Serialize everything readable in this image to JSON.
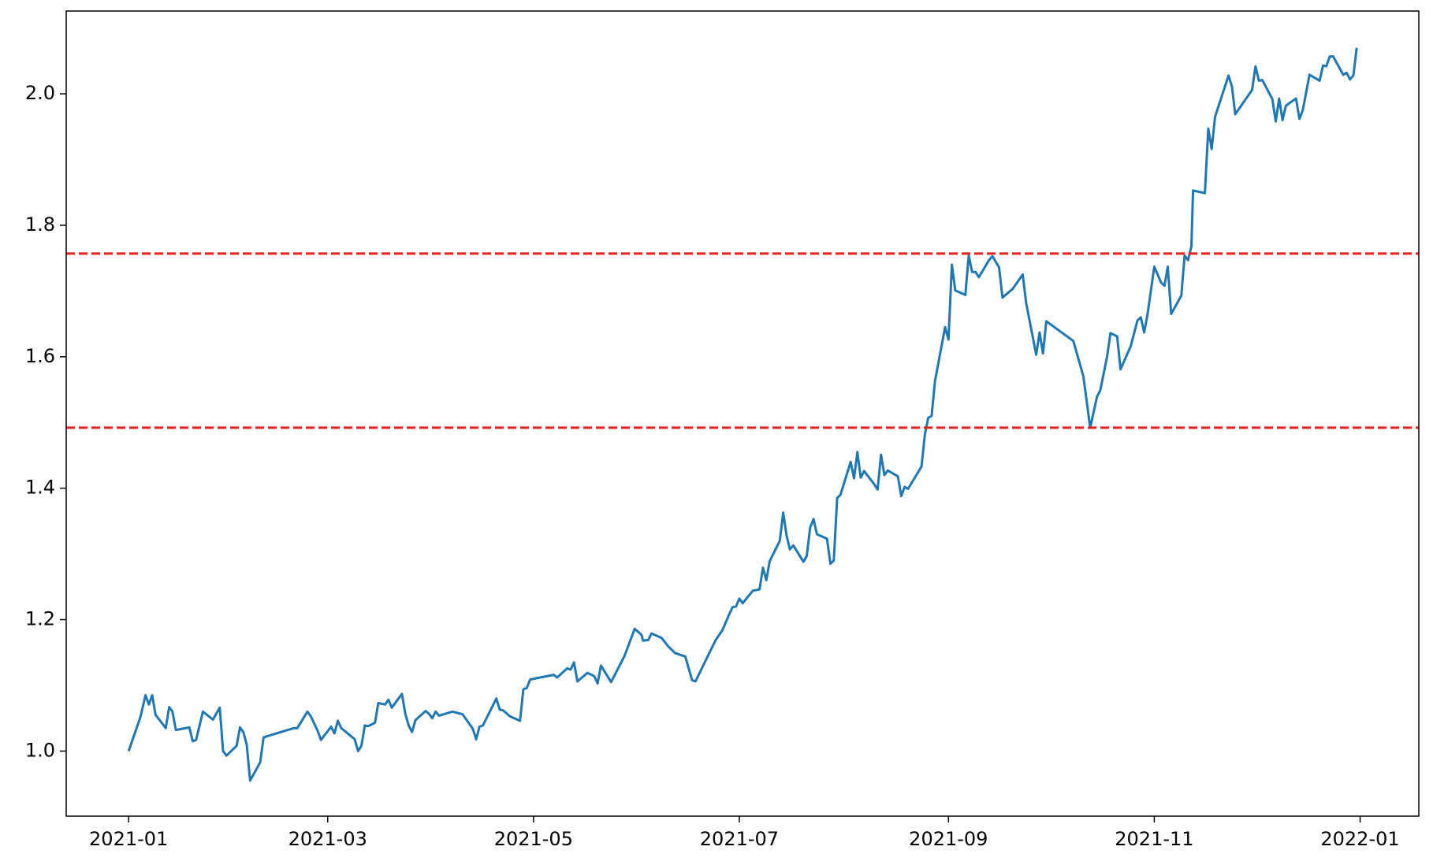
{
  "chart_data": {
    "type": "line",
    "x": [
      0,
      3.5,
      5,
      6,
      7,
      8,
      11,
      12,
      13,
      14,
      18,
      19,
      20,
      22,
      25,
      27,
      28,
      29,
      32,
      33,
      34,
      35,
      36,
      39,
      40,
      49,
      50,
      53,
      54,
      56,
      57,
      60,
      61,
      62,
      63,
      67,
      68,
      69,
      70,
      71,
      73,
      74,
      76,
      77,
      78,
      81,
      82,
      83,
      84,
      85,
      88,
      89,
      90,
      91,
      92,
      96,
      99,
      102,
      103,
      104,
      105,
      109,
      110,
      111,
      113,
      116,
      117,
      118,
      119,
      126,
      127,
      130,
      131,
      132,
      133,
      136,
      138,
      139,
      140,
      143,
      147,
      150,
      152,
      152.5,
      154,
      155,
      158,
      160,
      161,
      162,
      165,
      167,
      168,
      172,
      174,
      176,
      178,
      179,
      180,
      181,
      182,
      185,
      187,
      188,
      189,
      190,
      193,
      194,
      195,
      196,
      197,
      200,
      201,
      202,
      203,
      204,
      207,
      208,
      209,
      210,
      211,
      214,
      215,
      216,
      217,
      218,
      221,
      222,
      223,
      224,
      225,
      228,
      229,
      230,
      231,
      235,
      236,
      237,
      238,
      239,
      242,
      243,
      244,
      245,
      248,
      249,
      250,
      251,
      252,
      255,
      256,
      258,
      259,
      262,
      265,
      266,
      269,
      270,
      271,
      272,
      280,
      283,
      285,
      287,
      288,
      290,
      291,
      293,
      294,
      297,
      299,
      300,
      301,
      302,
      304,
      306,
      307,
      308,
      309,
      312,
      313,
      314,
      315,
      315.5,
      319,
      320,
      321,
      322,
      326,
      327,
      328,
      333,
      334,
      335,
      336,
      339,
      340,
      341,
      342,
      343,
      346,
      347,
      348,
      350,
      353,
      354,
      355,
      356,
      357,
      360,
      361,
      362,
      363,
      364
    ],
    "series": [
      {
        "color": "#1f77b4",
        "values": [
          1.0,
          1.052,
          1.085,
          1.071,
          1.085,
          1.055,
          1.035,
          1.067,
          1.06,
          1.032,
          1.036,
          1.015,
          1.017,
          1.06,
          1.048,
          1.066,
          1.0,
          0.993,
          1.008,
          1.036,
          1.029,
          1.01,
          0.955,
          0.983,
          1.021,
          1.035,
          1.035,
          1.06,
          1.053,
          1.031,
          1.017,
          1.037,
          1.027,
          1.046,
          1.035,
          1.018,
          1.0,
          1.008,
          1.039,
          1.038,
          1.043,
          1.073,
          1.071,
          1.078,
          1.066,
          1.087,
          1.057,
          1.039,
          1.029,
          1.047,
          1.061,
          1.057,
          1.05,
          1.06,
          1.054,
          1.06,
          1.056,
          1.034,
          1.018,
          1.037,
          1.039,
          1.08,
          1.063,
          1.062,
          1.053,
          1.046,
          1.094,
          1.096,
          1.109,
          1.116,
          1.112,
          1.126,
          1.124,
          1.135,
          1.106,
          1.119,
          1.114,
          1.103,
          1.13,
          1.105,
          1.145,
          1.186,
          1.177,
          1.168,
          1.169,
          1.179,
          1.172,
          1.159,
          1.154,
          1.149,
          1.144,
          1.108,
          1.106,
          1.148,
          1.169,
          1.184,
          1.208,
          1.219,
          1.22,
          1.232,
          1.225,
          1.244,
          1.246,
          1.279,
          1.26,
          1.289,
          1.32,
          1.363,
          1.328,
          1.307,
          1.313,
          1.288,
          1.297,
          1.34,
          1.353,
          1.33,
          1.323,
          1.285,
          1.29,
          1.385,
          1.39,
          1.44,
          1.415,
          1.455,
          1.416,
          1.426,
          1.406,
          1.398,
          1.451,
          1.42,
          1.427,
          1.418,
          1.388,
          1.402,
          1.399,
          1.433,
          1.482,
          1.507,
          1.51,
          1.563,
          1.645,
          1.626,
          1.74,
          1.701,
          1.694,
          1.754,
          1.729,
          1.729,
          1.721,
          1.747,
          1.753,
          1.736,
          1.69,
          1.703,
          1.725,
          1.682,
          1.603,
          1.637,
          1.605,
          1.654,
          1.624,
          1.57,
          1.492,
          1.539,
          1.549,
          1.6,
          1.636,
          1.631,
          1.581,
          1.616,
          1.655,
          1.66,
          1.637,
          1.665,
          1.737,
          1.713,
          1.708,
          1.737,
          1.665,
          1.693,
          1.754,
          1.747,
          1.768,
          1.853,
          1.849,
          1.947,
          1.916,
          1.965,
          2.028,
          2.011,
          1.969,
          2.006,
          2.042,
          2.02,
          2.021,
          1.992,
          1.958,
          1.993,
          1.96,
          1.982,
          1.993,
          1.962,
          1.975,
          2.029,
          2.02,
          2.043,
          2.042,
          2.057,
          2.057,
          2.029,
          2.032,
          2.022,
          2.028,
          2.07
        ]
      }
    ],
    "hlines": [
      {
        "value": 1.757,
        "color": "#e8211c",
        "style": "dashed"
      },
      {
        "value": 1.492,
        "color": "#e8211c",
        "style": "dashed"
      }
    ],
    "xlim": [
      -18.5,
      382.4
    ],
    "xticks": [
      {
        "value": 0,
        "label": "2021-01"
      },
      {
        "value": 59,
        "label": "2021-03"
      },
      {
        "value": 120,
        "label": "2021-05"
      },
      {
        "value": 181,
        "label": "2021-07"
      },
      {
        "value": 243,
        "label": "2021-09"
      },
      {
        "value": 304,
        "label": "2021-11"
      },
      {
        "value": 365,
        "label": "2022-01"
      }
    ],
    "ylim": [
      0.901,
      2.126
    ],
    "yticks": [
      {
        "value": 1,
        "label": "1.0"
      },
      1.2,
      1.4,
      1.6,
      1.8,
      {
        "value": 2,
        "label": "2.0"
      }
    ],
    "grid": false
  }
}
